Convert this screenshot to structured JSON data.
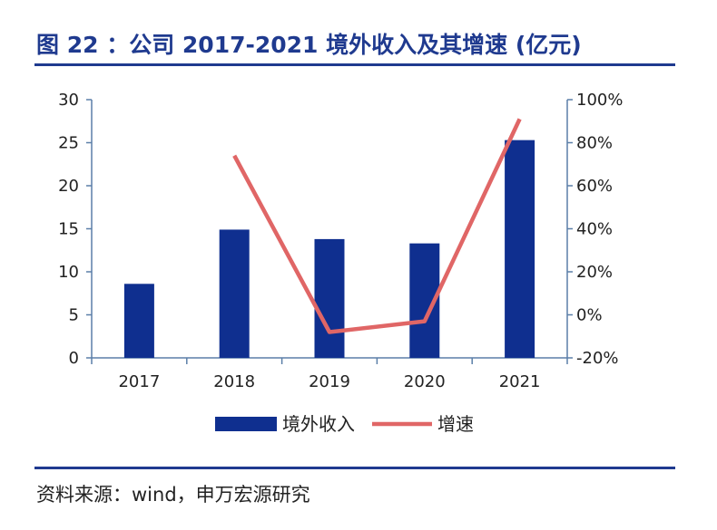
{
  "title": "图 22 ：公司 2017-2021 境外收入及其增速 (亿元)",
  "source": "资料来源：wind，申万宏源研究",
  "colors": {
    "bar": "#0f2f8f",
    "line": "#e06666",
    "axis": "#5b7fa8",
    "title": "#1f3a8f"
  },
  "chart_data": {
    "type": "bar",
    "categories": [
      "2017",
      "2018",
      "2019",
      "2020",
      "2021"
    ],
    "series": [
      {
        "name": "境外收入",
        "type": "bar",
        "axis": "left",
        "values": [
          8.6,
          14.9,
          13.8,
          13.3,
          25.3
        ]
      },
      {
        "name": "增速",
        "type": "line",
        "axis": "right",
        "values": [
          null,
          74,
          -8,
          -3,
          91
        ]
      }
    ],
    "y_left": {
      "min": 0,
      "max": 30,
      "ticks": [
        "0",
        "5",
        "10",
        "15",
        "20",
        "25",
        "30"
      ]
    },
    "y_right": {
      "min": -20,
      "max": 100,
      "ticks": [
        "-20%",
        "0%",
        "20%",
        "40%",
        "60%",
        "80%",
        "100%"
      ]
    },
    "legend": "bottom",
    "grid": false
  }
}
